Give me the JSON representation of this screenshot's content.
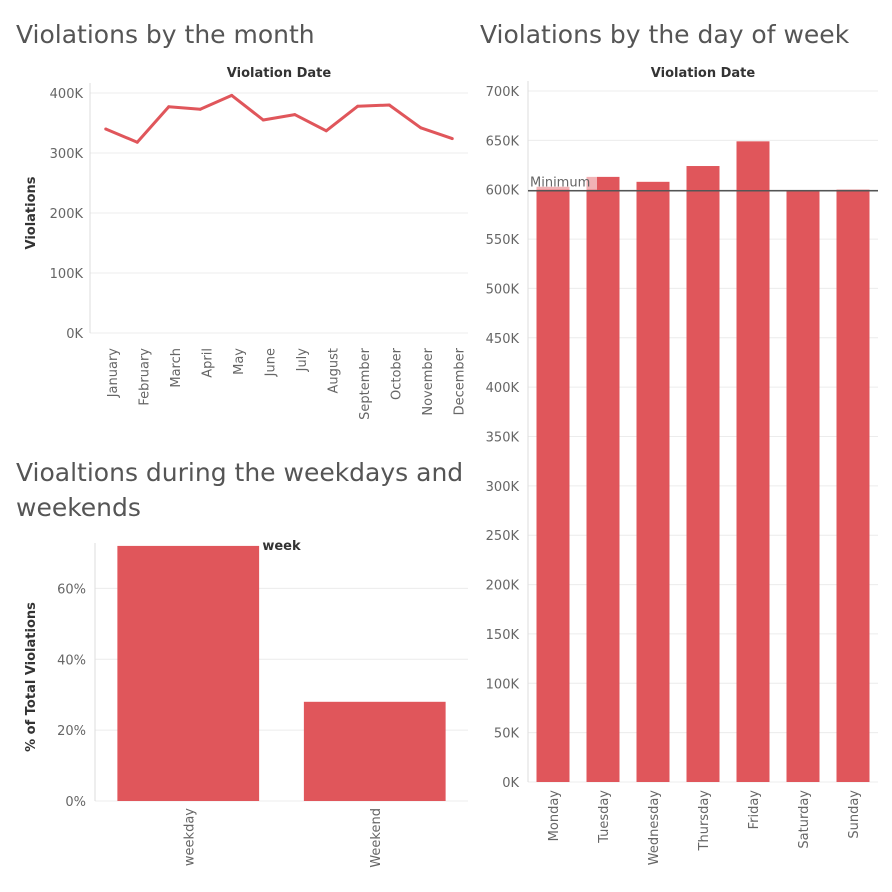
{
  "titles": {
    "month": "Violations by the month",
    "dow": "Violations by the day of week",
    "week_line1": "Vioaltions during the weekdays and",
    "week_line2": "weekends"
  },
  "colors": {
    "bar": "#e0565b",
    "line": "#e0565b",
    "reference_line": "#555555"
  },
  "chart_data": [
    {
      "id": "month",
      "type": "line",
      "title": "Violations by the month",
      "header": "Violation Date",
      "ylabel": "Violations",
      "categories": [
        "January",
        "February",
        "March",
        "April",
        "May",
        "June",
        "July",
        "August",
        "September",
        "October",
        "November",
        "December"
      ],
      "values": [
        340000,
        318000,
        377000,
        373000,
        396000,
        355000,
        364000,
        337000,
        378000,
        380000,
        342000,
        324000
      ],
      "ylim": [
        0,
        400000
      ],
      "yticks": [
        0,
        100000,
        200000,
        300000,
        400000
      ],
      "ytick_labels": [
        "0K",
        "100K",
        "200K",
        "300K",
        "400K"
      ],
      "grid": true
    },
    {
      "id": "dow",
      "type": "bar",
      "title": "Violations by the day of week",
      "header": "Violation Date",
      "categories": [
        "Monday",
        "Tuesday",
        "Wednesday",
        "Thursday",
        "Friday",
        "Saturday",
        "Sunday"
      ],
      "values": [
        603000,
        613000,
        608000,
        624000,
        649000,
        599000,
        600000
      ],
      "ylim": [
        0,
        700000
      ],
      "yticks": [
        0,
        50000,
        100000,
        150000,
        200000,
        250000,
        300000,
        350000,
        400000,
        450000,
        500000,
        550000,
        600000,
        650000,
        700000
      ],
      "ytick_labels": [
        "0K",
        "50K",
        "100K",
        "150K",
        "200K",
        "250K",
        "300K",
        "350K",
        "400K",
        "450K",
        "500K",
        "550K",
        "600K",
        "650K",
        "700K"
      ],
      "reference_line": {
        "label": "Minimum",
        "value": 599000
      },
      "grid": true
    },
    {
      "id": "week",
      "type": "bar",
      "title": "Vioaltions during the weekdays and weekends",
      "header": "week",
      "ylabel": "% of Total Violations",
      "categories": [
        "weekday",
        "Weekend"
      ],
      "values": [
        72,
        28
      ],
      "ylim": [
        0,
        70
      ],
      "yticks": [
        0,
        20,
        40,
        60
      ],
      "ytick_labels": [
        "0%",
        "20%",
        "40%",
        "60%"
      ],
      "grid": true
    }
  ]
}
